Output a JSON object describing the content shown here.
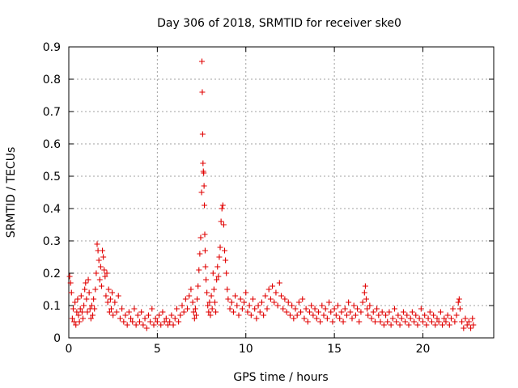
{
  "chart_data": {
    "type": "scatter",
    "title": "Day 306 of 2018, SRMTID for receiver ske0",
    "xlabel": "GPS time / hours",
    "ylabel": "SRMTID / TECUs",
    "xlim": [
      0,
      24
    ],
    "ylim": [
      0,
      0.9
    ],
    "xticks": [
      0,
      5,
      10,
      15,
      20
    ],
    "yticks": [
      0,
      0.1,
      0.2,
      0.3,
      0.4,
      0.5,
      0.6,
      0.7,
      0.8,
      0.9
    ],
    "x_tick_labels": [
      "0",
      "5",
      "10",
      "15",
      "20"
    ],
    "y_tick_labels": [
      "0",
      "0.1",
      "0.2",
      "0.3",
      "0.4",
      "0.5",
      "0.6",
      "0.7",
      "0.8",
      "0.9"
    ],
    "grid": true,
    "marker": "+",
    "color": "#e00000",
    "series": [
      {
        "name": "SRMTID",
        "points": [
          [
            0.05,
            0.19
          ],
          [
            0.1,
            0.17
          ],
          [
            0.15,
            0.14
          ],
          [
            0.2,
            0.06
          ],
          [
            0.25,
            0.09
          ],
          [
            0.3,
            0.05
          ],
          [
            0.35,
            0.11
          ],
          [
            0.4,
            0.04
          ],
          [
            0.45,
            0.08
          ],
          [
            0.5,
            0.12
          ],
          [
            0.55,
            0.07
          ],
          [
            0.6,
            0.05
          ],
          [
            0.65,
            0.09
          ],
          [
            0.7,
            0.13
          ],
          [
            0.75,
            0.08
          ],
          [
            0.8,
            0.06
          ],
          [
            0.85,
            0.1
          ],
          [
            0.9,
            0.15
          ],
          [
            0.95,
            0.17
          ],
          [
            1.0,
            0.12
          ],
          [
            1.05,
            0.08
          ],
          [
            1.1,
            0.18
          ],
          [
            1.15,
            0.14
          ],
          [
            1.2,
            0.09
          ],
          [
            1.25,
            0.06
          ],
          [
            1.3,
            0.1
          ],
          [
            1.35,
            0.07
          ],
          [
            1.4,
            0.12
          ],
          [
            1.45,
            0.09
          ],
          [
            1.5,
            0.15
          ],
          [
            1.55,
            0.2
          ],
          [
            1.6,
            0.29
          ],
          [
            1.65,
            0.27
          ],
          [
            1.7,
            0.24
          ],
          [
            1.75,
            0.18
          ],
          [
            1.8,
            0.22
          ],
          [
            1.85,
            0.16
          ],
          [
            1.9,
            0.27
          ],
          [
            1.95,
            0.25
          ],
          [
            2.0,
            0.21
          ],
          [
            2.05,
            0.19
          ],
          [
            2.1,
            0.13
          ],
          [
            2.15,
            0.2
          ],
          [
            2.2,
            0.11
          ],
          [
            2.25,
            0.15
          ],
          [
            2.3,
            0.08
          ],
          [
            2.35,
            0.12
          ],
          [
            2.4,
            0.09
          ],
          [
            2.45,
            0.14
          ],
          [
            2.5,
            0.07
          ],
          [
            2.6,
            0.11
          ],
          [
            2.7,
            0.08
          ],
          [
            2.8,
            0.13
          ],
          [
            2.9,
            0.06
          ],
          [
            3.0,
            0.09
          ],
          [
            3.1,
            0.05
          ],
          [
            3.2,
            0.07
          ],
          [
            3.3,
            0.04
          ],
          [
            3.4,
            0.08
          ],
          [
            3.5,
            0.06
          ],
          [
            3.6,
            0.05
          ],
          [
            3.7,
            0.09
          ],
          [
            3.8,
            0.04
          ],
          [
            3.9,
            0.07
          ],
          [
            4.0,
            0.05
          ],
          [
            4.1,
            0.08
          ],
          [
            4.2,
            0.04
          ],
          [
            4.3,
            0.06
          ],
          [
            4.4,
            0.03
          ],
          [
            4.5,
            0.07
          ],
          [
            4.6,
            0.05
          ],
          [
            4.7,
            0.09
          ],
          [
            4.8,
            0.04
          ],
          [
            4.9,
            0.06
          ],
          [
            5.0,
            0.05
          ],
          [
            5.1,
            0.07
          ],
          [
            5.2,
            0.04
          ],
          [
            5.3,
            0.08
          ],
          [
            5.4,
            0.05
          ],
          [
            5.5,
            0.06
          ],
          [
            5.6,
            0.04
          ],
          [
            5.7,
            0.05
          ],
          [
            5.8,
            0.07
          ],
          [
            5.9,
            0.04
          ],
          [
            6.0,
            0.06
          ],
          [
            6.1,
            0.09
          ],
          [
            6.2,
            0.05
          ],
          [
            6.3,
            0.07
          ],
          [
            6.4,
            0.1
          ],
          [
            6.5,
            0.08
          ],
          [
            6.6,
            0.12
          ],
          [
            6.7,
            0.09
          ],
          [
            6.8,
            0.13
          ],
          [
            6.9,
            0.15
          ],
          [
            7.0,
            0.11
          ],
          [
            7.05,
            0.08
          ],
          [
            7.1,
            0.06
          ],
          [
            7.15,
            0.09
          ],
          [
            7.2,
            0.07
          ],
          [
            7.25,
            0.12
          ],
          [
            7.3,
            0.16
          ],
          [
            7.35,
            0.21
          ],
          [
            7.4,
            0.26
          ],
          [
            7.45,
            0.31
          ],
          [
            7.5,
            0.45
          ],
          [
            7.52,
            0.855
          ],
          [
            7.54,
            0.76
          ],
          [
            7.56,
            0.63
          ],
          [
            7.58,
            0.54
          ],
          [
            7.6,
            0.515
          ],
          [
            7.62,
            0.51
          ],
          [
            7.64,
            0.47
          ],
          [
            7.66,
            0.41
          ],
          [
            7.68,
            0.32
          ],
          [
            7.7,
            0.27
          ],
          [
            7.72,
            0.22
          ],
          [
            7.75,
            0.18
          ],
          [
            7.8,
            0.14
          ],
          [
            7.85,
            0.1
          ],
          [
            7.9,
            0.08
          ],
          [
            7.95,
            0.11
          ],
          [
            8.0,
            0.07
          ],
          [
            8.05,
            0.13
          ],
          [
            8.1,
            0.09
          ],
          [
            8.15,
            0.2
          ],
          [
            8.2,
            0.15
          ],
          [
            8.25,
            0.11
          ],
          [
            8.3,
            0.08
          ],
          [
            8.35,
            0.18
          ],
          [
            8.4,
            0.22
          ],
          [
            8.45,
            0.19
          ],
          [
            8.5,
            0.25
          ],
          [
            8.55,
            0.28
          ],
          [
            8.6,
            0.36
          ],
          [
            8.65,
            0.4
          ],
          [
            8.7,
            0.41
          ],
          [
            8.75,
            0.35
          ],
          [
            8.8,
            0.27
          ],
          [
            8.85,
            0.24
          ],
          [
            8.9,
            0.2
          ],
          [
            8.95,
            0.15
          ],
          [
            9.0,
            0.12
          ],
          [
            9.1,
            0.09
          ],
          [
            9.2,
            0.11
          ],
          [
            9.3,
            0.08
          ],
          [
            9.4,
            0.13
          ],
          [
            9.5,
            0.1
          ],
          [
            9.6,
            0.07
          ],
          [
            9.7,
            0.12
          ],
          [
            9.8,
            0.09
          ],
          [
            9.9,
            0.11
          ],
          [
            10.0,
            0.14
          ],
          [
            10.1,
            0.08
          ],
          [
            10.2,
            0.1
          ],
          [
            10.3,
            0.07
          ],
          [
            10.4,
            0.12
          ],
          [
            10.5,
            0.09
          ],
          [
            10.6,
            0.06
          ],
          [
            10.7,
            0.1
          ],
          [
            10.8,
            0.08
          ],
          [
            10.9,
            0.11
          ],
          [
            11.0,
            0.07
          ],
          [
            11.1,
            0.13
          ],
          [
            11.2,
            0.09
          ],
          [
            11.3,
            0.15
          ],
          [
            11.4,
            0.12
          ],
          [
            11.5,
            0.16
          ],
          [
            11.6,
            0.11
          ],
          [
            11.7,
            0.14
          ],
          [
            11.8,
            0.1
          ],
          [
            11.9,
            0.17
          ],
          [
            12.0,
            0.13
          ],
          [
            12.1,
            0.09
          ],
          [
            12.2,
            0.12
          ],
          [
            12.3,
            0.08
          ],
          [
            12.4,
            0.11
          ],
          [
            12.5,
            0.07
          ],
          [
            12.6,
            0.1
          ],
          [
            12.7,
            0.06
          ],
          [
            12.8,
            0.09
          ],
          [
            12.9,
            0.07
          ],
          [
            13.0,
            0.11
          ],
          [
            13.1,
            0.08
          ],
          [
            13.2,
            0.12
          ],
          [
            13.3,
            0.06
          ],
          [
            13.4,
            0.09
          ],
          [
            13.5,
            0.05
          ],
          [
            13.6,
            0.08
          ],
          [
            13.7,
            0.1
          ],
          [
            13.8,
            0.07
          ],
          [
            13.9,
            0.09
          ],
          [
            14.0,
            0.06
          ],
          [
            14.1,
            0.08
          ],
          [
            14.2,
            0.05
          ],
          [
            14.3,
            0.1
          ],
          [
            14.4,
            0.07
          ],
          [
            14.5,
            0.09
          ],
          [
            14.6,
            0.06
          ],
          [
            14.7,
            0.11
          ],
          [
            14.8,
            0.08
          ],
          [
            14.9,
            0.05
          ],
          [
            15.0,
            0.09
          ],
          [
            15.1,
            0.07
          ],
          [
            15.2,
            0.1
          ],
          [
            15.3,
            0.06
          ],
          [
            15.4,
            0.08
          ],
          [
            15.5,
            0.05
          ],
          [
            15.6,
            0.09
          ],
          [
            15.7,
            0.07
          ],
          [
            15.8,
            0.11
          ],
          [
            15.9,
            0.08
          ],
          [
            16.0,
            0.06
          ],
          [
            16.1,
            0.1
          ],
          [
            16.2,
            0.07
          ],
          [
            16.3,
            0.09
          ],
          [
            16.4,
            0.05
          ],
          [
            16.5,
            0.08
          ],
          [
            16.6,
            0.11
          ],
          [
            16.7,
            0.14
          ],
          [
            16.75,
            0.16
          ],
          [
            16.8,
            0.12
          ],
          [
            16.85,
            0.09
          ],
          [
            16.9,
            0.07
          ],
          [
            17.0,
            0.1
          ],
          [
            17.1,
            0.06
          ],
          [
            17.2,
            0.08
          ],
          [
            17.3,
            0.05
          ],
          [
            17.4,
            0.09
          ],
          [
            17.5,
            0.07
          ],
          [
            17.6,
            0.05
          ],
          [
            17.7,
            0.08
          ],
          [
            17.8,
            0.04
          ],
          [
            17.9,
            0.07
          ],
          [
            18.0,
            0.05
          ],
          [
            18.1,
            0.08
          ],
          [
            18.2,
            0.04
          ],
          [
            18.3,
            0.06
          ],
          [
            18.4,
            0.09
          ],
          [
            18.5,
            0.05
          ],
          [
            18.6,
            0.07
          ],
          [
            18.7,
            0.04
          ],
          [
            18.8,
            0.06
          ],
          [
            18.9,
            0.08
          ],
          [
            19.0,
            0.05
          ],
          [
            19.1,
            0.07
          ],
          [
            19.2,
            0.04
          ],
          [
            19.3,
            0.06
          ],
          [
            19.4,
            0.08
          ],
          [
            19.5,
            0.05
          ],
          [
            19.6,
            0.07
          ],
          [
            19.7,
            0.04
          ],
          [
            19.8,
            0.06
          ],
          [
            19.9,
            0.09
          ],
          [
            20.0,
            0.05
          ],
          [
            20.1,
            0.07
          ],
          [
            20.2,
            0.04
          ],
          [
            20.3,
            0.06
          ],
          [
            20.4,
            0.08
          ],
          [
            20.5,
            0.05
          ],
          [
            20.6,
            0.07
          ],
          [
            20.7,
            0.04
          ],
          [
            20.8,
            0.06
          ],
          [
            20.9,
            0.05
          ],
          [
            21.0,
            0.08
          ],
          [
            21.1,
            0.04
          ],
          [
            21.2,
            0.06
          ],
          [
            21.3,
            0.05
          ],
          [
            21.4,
            0.07
          ],
          [
            21.5,
            0.04
          ],
          [
            21.6,
            0.06
          ],
          [
            21.7,
            0.09
          ],
          [
            21.8,
            0.05
          ],
          [
            21.9,
            0.07
          ],
          [
            22.0,
            0.11
          ],
          [
            22.05,
            0.12
          ],
          [
            22.1,
            0.09
          ],
          [
            22.2,
            0.05
          ],
          [
            22.3,
            0.03
          ],
          [
            22.4,
            0.06
          ],
          [
            22.5,
            0.04
          ],
          [
            22.6,
            0.05
          ],
          [
            22.7,
            0.03
          ],
          [
            22.8,
            0.06
          ],
          [
            22.85,
            0.04
          ]
        ]
      }
    ]
  }
}
